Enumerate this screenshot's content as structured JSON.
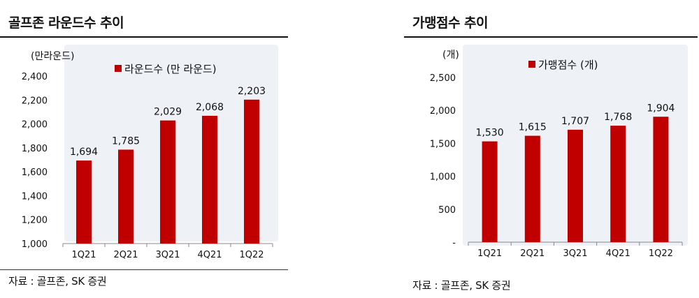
{
  "charts": {
    "left": {
      "title": "골프존 라운드수 추이",
      "source": "자료 : 골프존, SK 증권"
    },
    "right": {
      "title": "가맹점수 추이",
      "source": "자료 : 골프존, SK 증권"
    }
  },
  "chart_data": [
    {
      "type": "bar",
      "title": "골프존 라운드수 추이",
      "ylabel": "(만라운드)",
      "categories": [
        "1Q21",
        "2Q21",
        "3Q21",
        "4Q21",
        "1Q22"
      ],
      "series": [
        {
          "name": "라운드수 (만 라운드)",
          "values": [
            1694,
            1785,
            2029,
            2068,
            2203
          ]
        }
      ],
      "value_labels": [
        "1,694",
        "1,785",
        "2,029",
        "2,068",
        "2,203"
      ],
      "ylim": [
        1000,
        2400
      ],
      "yticks": [
        1000,
        1200,
        1400,
        1600,
        1800,
        2000,
        2200,
        2400
      ],
      "ytick_labels": [
        "1,000",
        "1,200",
        "1,400",
        "1,600",
        "1,800",
        "2,000",
        "2,200",
        "2,400"
      ],
      "color": "#c00000",
      "legend_position": "top",
      "grid": false
    },
    {
      "type": "bar",
      "title": "가맹점수 추이",
      "ylabel": "(개)",
      "categories": [
        "1Q21",
        "2Q21",
        "3Q21",
        "4Q21",
        "1Q22"
      ],
      "series": [
        {
          "name": "가맹점수 (개)",
          "values": [
            1530,
            1615,
            1707,
            1768,
            1904
          ]
        }
      ],
      "value_labels": [
        "1,530",
        "1,615",
        "1,707",
        "1,768",
        "1,904"
      ],
      "ylim": [
        0,
        2500
      ],
      "yticks": [
        0,
        500,
        1000,
        1500,
        2000,
        2500
      ],
      "ytick_labels": [
        "-",
        "500",
        "1,000",
        "1,500",
        "2,000",
        "2,500"
      ],
      "color": "#c00000",
      "legend_position": "top",
      "grid": false
    }
  ]
}
